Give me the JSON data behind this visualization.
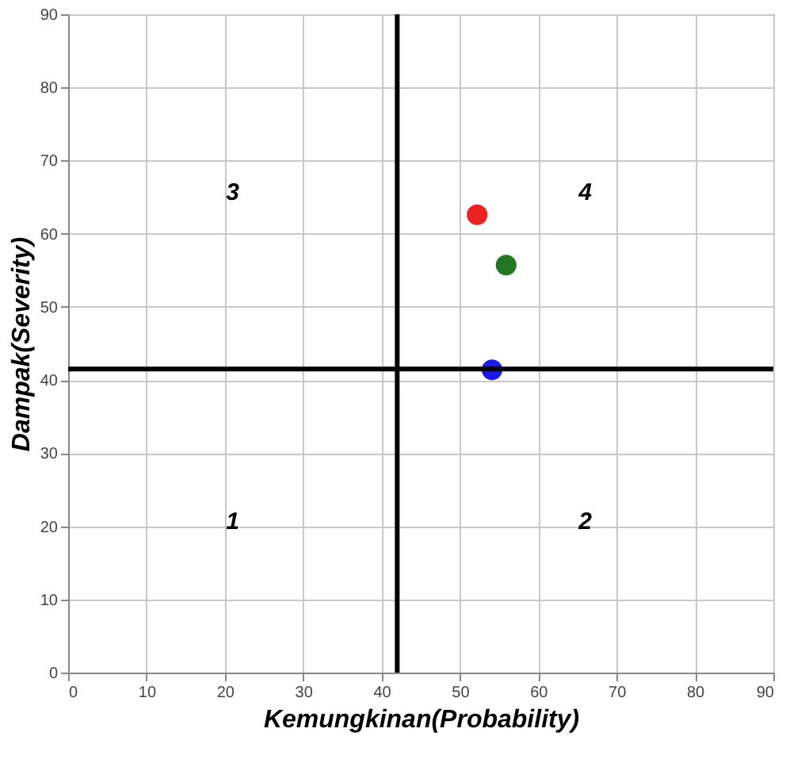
{
  "chart_data": {
    "type": "scatter",
    "xlabel": "Kemungkinan(Probability)",
    "ylabel": "Dampak(Severity)",
    "xlim": [
      0,
      90
    ],
    "ylim": [
      0,
      90
    ],
    "xticks": [
      0,
      10,
      20,
      30,
      40,
      50,
      60,
      70,
      80,
      90
    ],
    "yticks": [
      0,
      10,
      20,
      30,
      40,
      50,
      60,
      70,
      80,
      90
    ],
    "grid": true,
    "legend": false,
    "marker": "circle",
    "series": [
      {
        "color": "#ee2222",
        "x": [
          52.2
        ],
        "values": [
          62.6
        ]
      },
      {
        "color": "#227722",
        "x": [
          55.9
        ],
        "values": [
          55.7
        ]
      },
      {
        "color": "#1a1aee",
        "x": [
          54.1
        ],
        "values": [
          41.4
        ]
      }
    ],
    "ref_lines": [
      {
        "axis": "x",
        "value": 42,
        "color": "#000000"
      },
      {
        "axis": "y",
        "value": 41.5,
        "color": "#000000"
      }
    ],
    "annotations": [
      "1",
      "2",
      "3",
      "4"
    ]
  }
}
